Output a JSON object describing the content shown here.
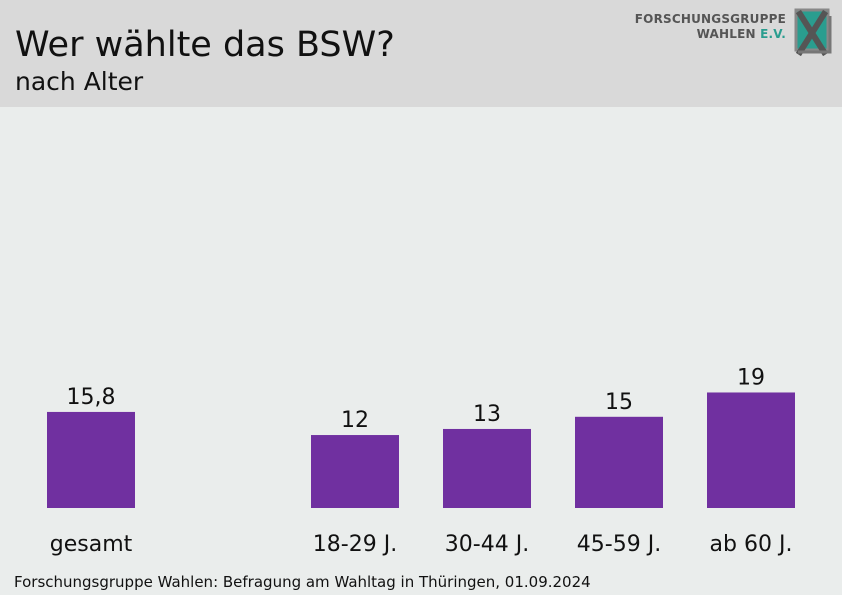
{
  "header": {
    "title": "Wer wählte das BSW?",
    "subtitle": "nach Alter",
    "logo": {
      "line1": "FORSCHUNGSGRUPPE",
      "line2_a": "WAHLEN ",
      "line2_b": "E.V."
    }
  },
  "footer": {
    "source": "Forschungsgruppe Wahlen: Befragung am Wahltag in Thüringen, 01.09.2024"
  },
  "colors": {
    "bar": "#7030a0",
    "header_bg": "#d9d9d9",
    "plot_bg": "#eaedec",
    "logo_accent": "#2a9d8f"
  },
  "chart_data": {
    "type": "bar",
    "categories": [
      "gesamt",
      "18-29 J.",
      "30-44 J.",
      "45-59 J.",
      "ab 60 J."
    ],
    "values": [
      15.8,
      12,
      13,
      15,
      19
    ],
    "value_labels": [
      "15,8",
      "12",
      "13",
      "15",
      "19"
    ],
    "title": "Wer wählte das BSW?",
    "subtitle": "nach Alter",
    "xlabel": "",
    "ylabel": "",
    "ylim": [
      0,
      19
    ],
    "grid": false,
    "legend": "none"
  }
}
